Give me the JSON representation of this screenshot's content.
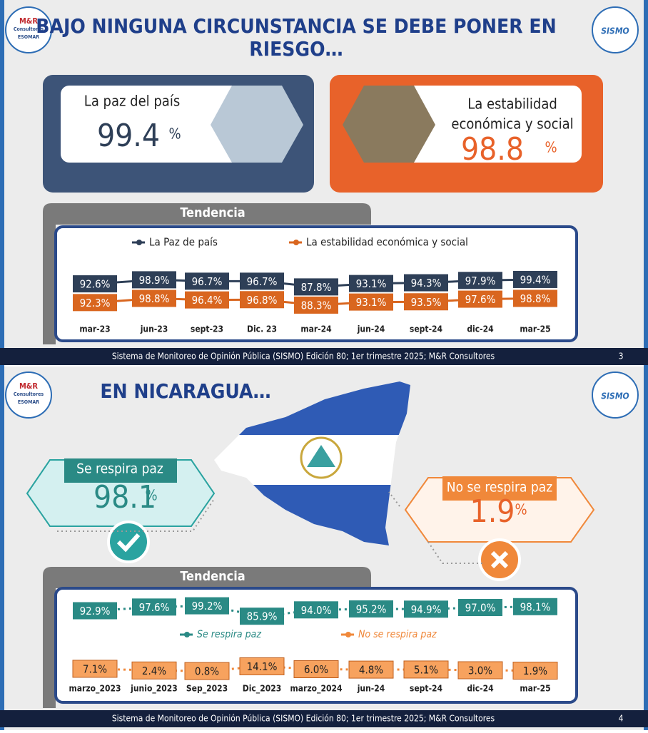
{
  "slides": [
    {
      "logos": {
        "left": [
          "M&R",
          "Consultores",
          "ESOMAR"
        ],
        "right": "SISMO"
      },
      "title": [
        "BAJO NINGUNA CIRCUNSTANCIA SE DEBE PONER EN",
        "RIESGO…"
      ],
      "cards": [
        {
          "label": [
            "La paz del país"
          ],
          "value": 99.4,
          "unit": "%"
        },
        {
          "label": [
            "La estabilidad",
            "económica y social"
          ],
          "value": 98.8,
          "unit": "%"
        }
      ],
      "trend": {
        "title": "Tendencia",
        "categories": [
          "mar-23",
          "jun-23",
          "sept-23",
          "Dic. 23",
          "mar-24",
          "jun-24",
          "sept-24",
          "dic-24",
          "mar-25"
        ],
        "series": [
          {
            "name": "La Paz de país",
            "color": "#2e3f57",
            "values": [
              92.6,
              98.9,
              96.7,
              96.7,
              87.8,
              93.1,
              94.3,
              97.9,
              99.4
            ],
            "value_labels": [
              "92.6%",
              "98.9%",
              "96.7%",
              "96.7%",
              "87.8%",
              "93.1%",
              "94.3%",
              "97.9%",
              "99.4%"
            ]
          },
          {
            "name": "La estabilidad económica y social",
            "color": "#d9661f",
            "values": [
              92.3,
              98.8,
              96.4,
              96.8,
              88.3,
              93.1,
              93.5,
              97.6,
              98.8
            ],
            "value_labels": [
              "92.3%",
              "98.8%",
              "96.4%",
              "96.8%",
              "88.3%",
              "93.1%",
              "93.5%",
              "97.6%",
              "98.8%"
            ]
          }
        ]
      },
      "footer": "Sistema de Monitoreo de Opinión Pública (SISMO) Edición 80; 1er trimestre 2025; M&R Consultores",
      "page": "3"
    },
    {
      "logos": {
        "left": [
          "M&R",
          "Consultores",
          "ESOMAR"
        ],
        "right": "SISMO"
      },
      "title": [
        "EN NICARAGUA…"
      ],
      "cards": [
        {
          "label": [
            "Se respira paz"
          ],
          "value": 98.1,
          "unit": "%"
        },
        {
          "label": [
            "No se respira paz"
          ],
          "value": 1.9,
          "unit": "%"
        }
      ],
      "trend": {
        "title": "Tendencia",
        "categories": [
          "marzo_2023",
          "junio_2023",
          "Sep_2023",
          "Dic_2023",
          "marzo_2024",
          "jun-24",
          "sept-24",
          "dic-24",
          "mar-25"
        ],
        "series": [
          {
            "name": "Se respira paz",
            "color": "#2a8a85",
            "values": [
              92.9,
              97.6,
              99.2,
              85.9,
              94.0,
              95.2,
              94.9,
              97.0,
              98.1
            ],
            "value_labels": [
              "92.9%",
              "97.6%",
              "99.2%",
              "85.9%",
              "94.0%",
              "95.2%",
              "94.9%",
              "97.0%",
              "98.1%"
            ]
          },
          {
            "name": "No se respira paz",
            "color": "#f0883a",
            "values": [
              7.1,
              2.4,
              0.8,
              14.1,
              6.0,
              4.8,
              5.1,
              3.0,
              1.9
            ],
            "value_labels": [
              "7.1%",
              "2.4%",
              "0.8%",
              "14.1%",
              "6.0%",
              "4.8%",
              "5.1%",
              "3.0%",
              "1.9%"
            ]
          }
        ]
      },
      "footer": "Sistema de Monitoreo de Opinión Pública (SISMO) Edición 80; 1er trimestre 2025; M&R Consultores",
      "page": "4"
    }
  ]
}
